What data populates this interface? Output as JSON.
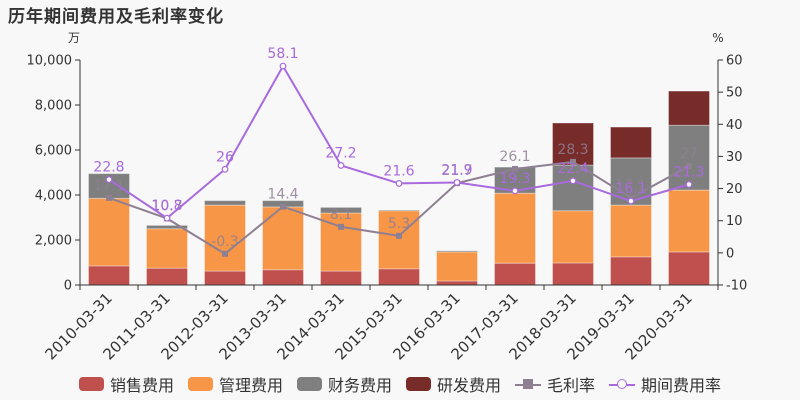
{
  "title": "历年期间费用及毛利率变化",
  "colors": {
    "sales": "#c0504d",
    "admin": "#f79646",
    "finance": "#7f7f7f",
    "rd": "#772c2a",
    "gross_margin": "#8e7f92",
    "expense_ratio": "#a86add"
  },
  "legend": [
    {
      "key": "sales",
      "label": "销售费用",
      "type": "bar"
    },
    {
      "key": "admin",
      "label": "管理费用",
      "type": "bar"
    },
    {
      "key": "finance",
      "label": "财务费用",
      "type": "bar"
    },
    {
      "key": "rd",
      "label": "研发费用",
      "type": "bar"
    },
    {
      "key": "gross_margin",
      "label": "毛利率",
      "type": "line-square"
    },
    {
      "key": "expense_ratio",
      "label": "期间费用率",
      "type": "line-circle"
    }
  ],
  "chart_data": {
    "type": "bar",
    "title": "历年期间费用及毛利率变化",
    "xlabel": "",
    "ylabel": "万",
    "ylabel_right": "%",
    "ylim": [
      0,
      10000
    ],
    "ylim_right": [
      -10,
      60
    ],
    "yticks": [
      "0",
      "2,000",
      "4,000",
      "6,000",
      "8,000",
      "10,000"
    ],
    "yticks_right": [
      "-10",
      "0",
      "10",
      "20",
      "30",
      "40",
      "50",
      "60"
    ],
    "grid": false,
    "legend_position": "bottom",
    "stacked": true,
    "categories": [
      "2010-03-31",
      "2011-03-31",
      "2012-03-31",
      "2013-03-31",
      "2014-03-31",
      "2015-03-31",
      "2016-03-31",
      "2017-03-31",
      "2018-03-31",
      "2019-03-31",
      "2020-03-31"
    ],
    "series": [
      {
        "name": "销售费用",
        "axis": "left",
        "type": "bar",
        "values": [
          850,
          750,
          620,
          680,
          620,
          720,
          180,
          970,
          980,
          1250,
          1470
        ]
      },
      {
        "name": "管理费用",
        "axis": "left",
        "type": "bar",
        "values": [
          3000,
          1750,
          2930,
          2790,
          2580,
          2580,
          1290,
          3110,
          2320,
          2300,
          2750
        ]
      },
      {
        "name": "财务费用",
        "axis": "left",
        "type": "bar",
        "values": [
          1100,
          150,
          200,
          280,
          250,
          30,
          50,
          1160,
          2030,
          2100,
          2880
        ]
      },
      {
        "name": "研发费用",
        "axis": "left",
        "type": "bar",
        "values": [
          0,
          0,
          0,
          0,
          0,
          0,
          0,
          0,
          1870,
          1370,
          1520
        ]
      },
      {
        "name": "毛利率",
        "axis": "right",
        "type": "line",
        "values": [
          17.1,
          10.7,
          -0.3,
          14.4,
          8.1,
          5.3,
          21.7,
          26.1,
          28.3,
          17.1,
          27
        ]
      },
      {
        "name": "期间费用率",
        "axis": "right",
        "type": "line",
        "values": [
          22.8,
          10.8,
          26,
          58.1,
          27.2,
          21.6,
          21.9,
          19.3,
          22.4,
          16.1,
          21.3
        ]
      }
    ]
  }
}
